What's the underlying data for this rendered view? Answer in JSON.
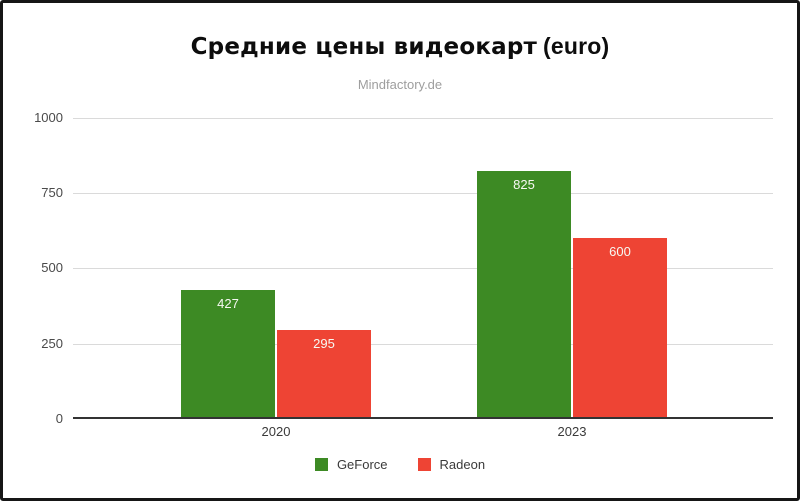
{
  "frame": {
    "background": "#ffffff",
    "border_color": "#161616"
  },
  "title": {
    "main": "Средние цены видеокарт",
    "suffix": "(euro)"
  },
  "subtitle": "Mindfactory.de",
  "chart_data": {
    "type": "bar",
    "title": "Средние цены видеокарт (euro)",
    "subtitle": "Mindfactory.de",
    "categories": [
      "2020",
      "2023"
    ],
    "series": [
      {
        "name": "GeForce",
        "color": "#3d8a24",
        "values": [
          427,
          825
        ]
      },
      {
        "name": "Radeon",
        "color": "#ee4434",
        "values": [
          295,
          600
        ]
      }
    ],
    "ylim": [
      0,
      1000
    ],
    "yticks": [
      0,
      250,
      500,
      750,
      1000
    ],
    "grid": true,
    "legend_position": "bottom",
    "value_labels": true,
    "value_label_color": "#f7f9f3"
  }
}
